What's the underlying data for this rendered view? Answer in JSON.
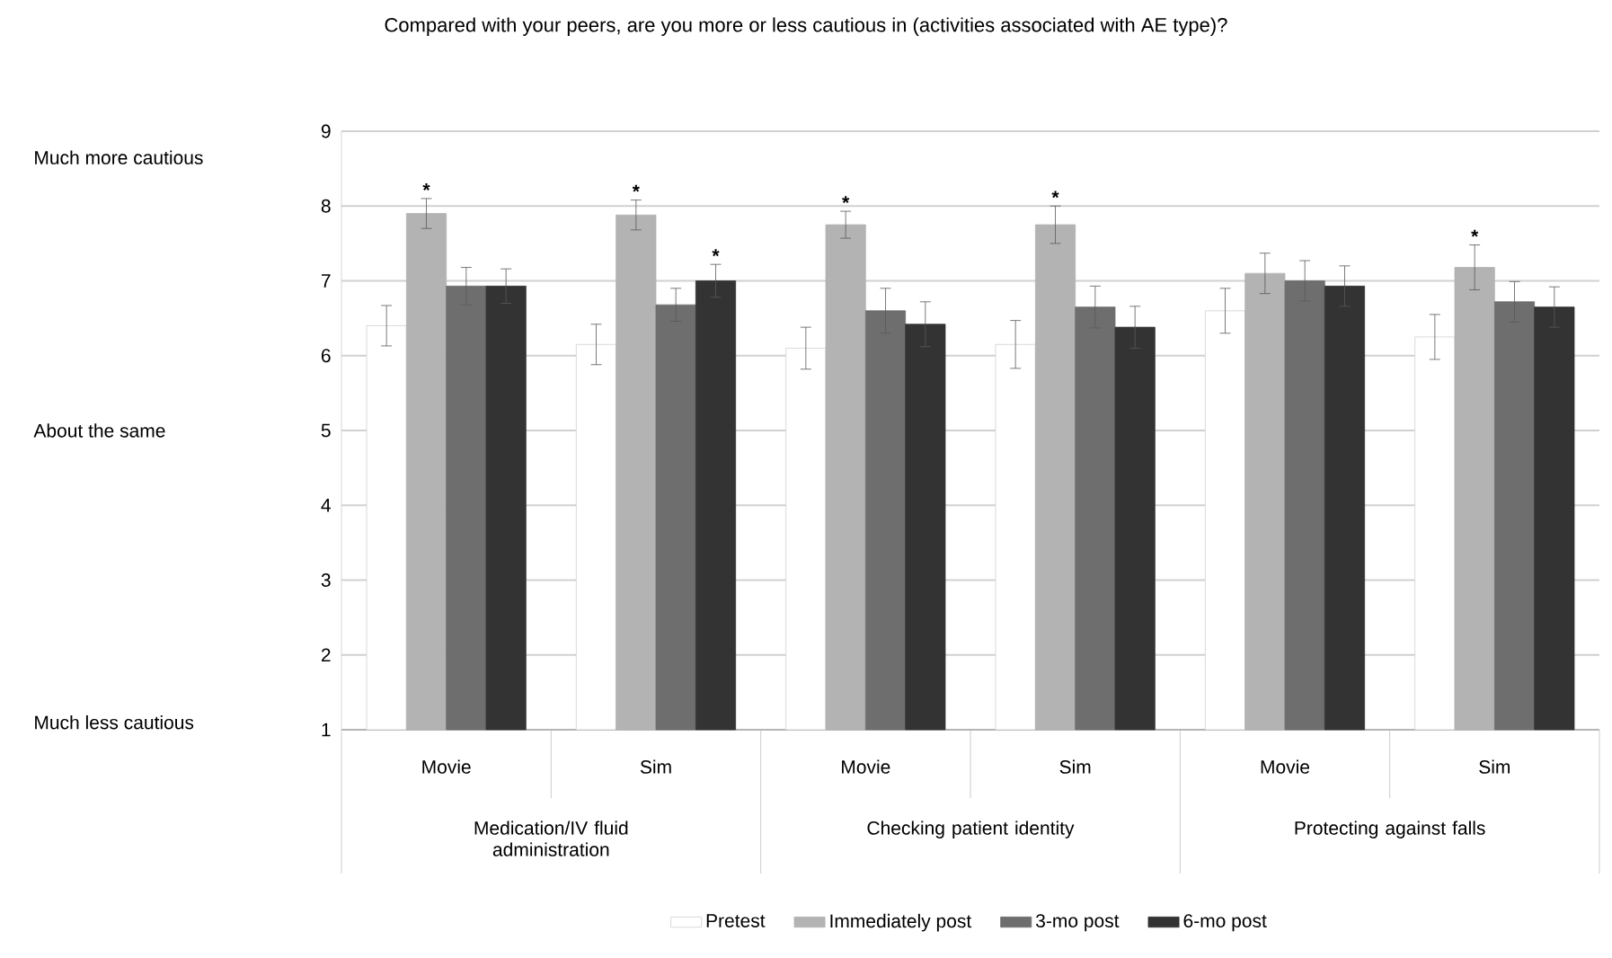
{
  "chart_data": {
    "type": "bar",
    "title": "Compared with your peers, are you more or less cautious in (activities associated with AE type)?",
    "categories": [
      "Movie",
      "Sim",
      "Movie",
      "Sim",
      "Movie",
      "Sim"
    ],
    "series": [
      {
        "name": "Pretest",
        "color": "#ffffff",
        "values": [
          6.4,
          6.15,
          6.1,
          6.15,
          6.6,
          6.25
        ],
        "errors": [
          0.27,
          0.27,
          0.28,
          0.32,
          0.3,
          0.3
        ]
      },
      {
        "name": "Immediately post",
        "color": "#b3b3b3",
        "values": [
          7.9,
          7.88,
          7.75,
          7.75,
          7.1,
          7.18
        ],
        "errors": [
          0.2,
          0.2,
          0.18,
          0.25,
          0.27,
          0.3
        ],
        "value_labels": [
          "*",
          "*",
          "*",
          "*",
          null,
          "*"
        ]
      },
      {
        "name": "3-mo post",
        "color": "#6e6e6e",
        "values": [
          6.93,
          6.68,
          6.6,
          6.65,
          7.0,
          6.72
        ],
        "errors": [
          0.25,
          0.22,
          0.3,
          0.28,
          0.27,
          0.27
        ]
      },
      {
        "name": "6-mo post",
        "color": "#333333",
        "values": [
          6.93,
          7.0,
          6.42,
          6.38,
          6.93,
          6.65
        ],
        "errors": [
          0.23,
          0.22,
          0.3,
          0.28,
          0.27,
          0.27
        ],
        "value_labels": [
          null,
          "*",
          null,
          null,
          null,
          null
        ]
      }
    ],
    "ylim": [
      1,
      9
    ],
    "yticks": [
      1,
      2,
      3,
      4,
      5,
      6,
      7,
      8,
      9
    ],
    "grid": "y",
    "legend": "bottom",
    "annotations": [
      "Much more cautious",
      "About the same",
      "Much less cautious",
      "Medication/IV fluid administration",
      "Checking patient identity",
      "Protecting against falls"
    ]
  }
}
